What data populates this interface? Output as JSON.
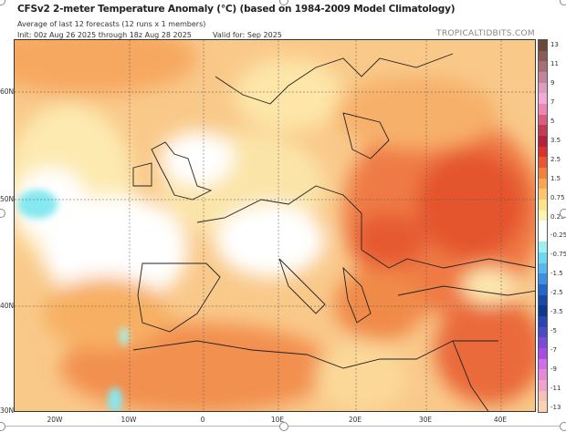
{
  "header": {
    "title": "CFSv2 2-meter Temperature Anomaly (°C) (based on 1984-2009 Model Climatology)",
    "subtitle": "Average of last 12 forecasts (12 runs x 1 members)",
    "init": "Init: 00z Aug 26 2025 through 18z Aug 28 2025",
    "valid": "Valid for: Sep 2025",
    "brand": "TROPICALTIDBITS.COM"
  },
  "axes": {
    "lat_labels": [
      "60N",
      "50N",
      "40N",
      "30N"
    ],
    "lon_labels": [
      "20W",
      "10W",
      "0",
      "10E",
      "20E",
      "30E",
      "40E"
    ]
  },
  "colorbar": {
    "labels": [
      "13",
      "11",
      "9",
      "7",
      "5",
      "3.5",
      "2.5",
      "1.5",
      "0.75",
      "0.25",
      "-0.25",
      "-0.75",
      "-1.5",
      "-2.5",
      "-3.5",
      "-5",
      "-7",
      "-9",
      "-11",
      "-13"
    ],
    "colors": [
      "#6b4a3a",
      "#8a5a55",
      "#a86f78",
      "#c3849a",
      "#dd9cc0",
      "#f3a9d9",
      "#ee86b4",
      "#d8607f",
      "#c23c55",
      "#b3233a",
      "#d9332e",
      "#ea5634",
      "#f2803f",
      "#f7a656",
      "#fbc76c",
      "#fde48a",
      "#fbf5b0",
      "#ffffff",
      "#ffffff",
      "#9eeff0",
      "#6fd8f0",
      "#5ab6ee",
      "#3d8fe0",
      "#2566c4",
      "#164aa6",
      "#0b3a8a",
      "#2a44b0",
      "#4c4bc4",
      "#7a4bd6",
      "#a54ee0",
      "#cf6ee6",
      "#e58ad9",
      "#f0a4c9",
      "#f6bfb8",
      "#fbd3b0"
    ]
  }
}
